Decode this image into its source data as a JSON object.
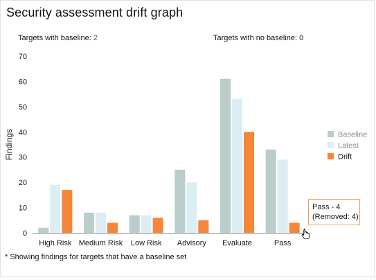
{
  "title": "Security assessment drift graph",
  "stats": {
    "with_baseline_label": "Targets with baseline:",
    "with_baseline_value": "2",
    "no_baseline_label": "Targets with no baseline:",
    "no_baseline_value": "0"
  },
  "footnote": "* Showing findings for targets that have a baseline set",
  "tooltip": {
    "line1": "Pass - 4",
    "line2": "(Removed: 4)"
  },
  "chart_data": {
    "type": "bar",
    "title": "Security assessment drift graph",
    "ylabel": "Findings",
    "xlabel": "",
    "ylim": [
      0,
      70
    ],
    "yticks": [
      0,
      10,
      20,
      30,
      40,
      50,
      60,
      70
    ],
    "grid": false,
    "legend": "right",
    "categories": [
      "High Risk",
      "Medium Risk",
      "Low Risk",
      "Advisory",
      "Evaluate",
      "Pass"
    ],
    "series": [
      {
        "name": "Baseline",
        "color": "#b9cdcb",
        "values": [
          2,
          8,
          7,
          25,
          61,
          33
        ]
      },
      {
        "name": "Latest",
        "color": "#dcedf4",
        "values": [
          19,
          8,
          7,
          20,
          53,
          29
        ]
      },
      {
        "name": "Drift",
        "color": "#f5863a",
        "values": [
          17,
          4,
          6,
          5,
          40,
          4
        ]
      }
    ]
  }
}
